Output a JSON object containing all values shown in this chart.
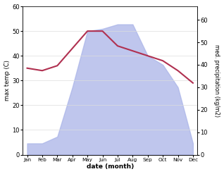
{
  "months": [
    "Jan",
    "Feb",
    "Mar",
    "Apr",
    "May",
    "Jun",
    "Jul",
    "Aug",
    "Sep",
    "Oct",
    "Nov",
    "Dec"
  ],
  "temp_max": [
    35,
    34,
    36,
    43,
    50,
    50,
    44,
    42,
    40,
    38,
    34,
    29
  ],
  "precipitation": [
    5,
    5,
    8,
    30,
    55,
    56,
    58,
    58,
    44,
    40,
    30,
    5
  ],
  "temp_ylim": [
    0,
    60
  ],
  "precip_ylim": [
    0,
    66
  ],
  "right_yticks": [
    0,
    10,
    20,
    30,
    40,
    50,
    60
  ],
  "left_yticks": [
    0,
    10,
    20,
    30,
    40,
    50,
    60
  ],
  "temp_color": "#b03050",
  "precip_fill_color": "#aab4e8",
  "precip_fill_alpha": 0.75,
  "xlabel": "date (month)",
  "ylabel_left": "max temp (C)",
  "ylabel_right": "med. precipitation (kg/m2)",
  "line_width": 1.5,
  "background_color": "#ffffff"
}
